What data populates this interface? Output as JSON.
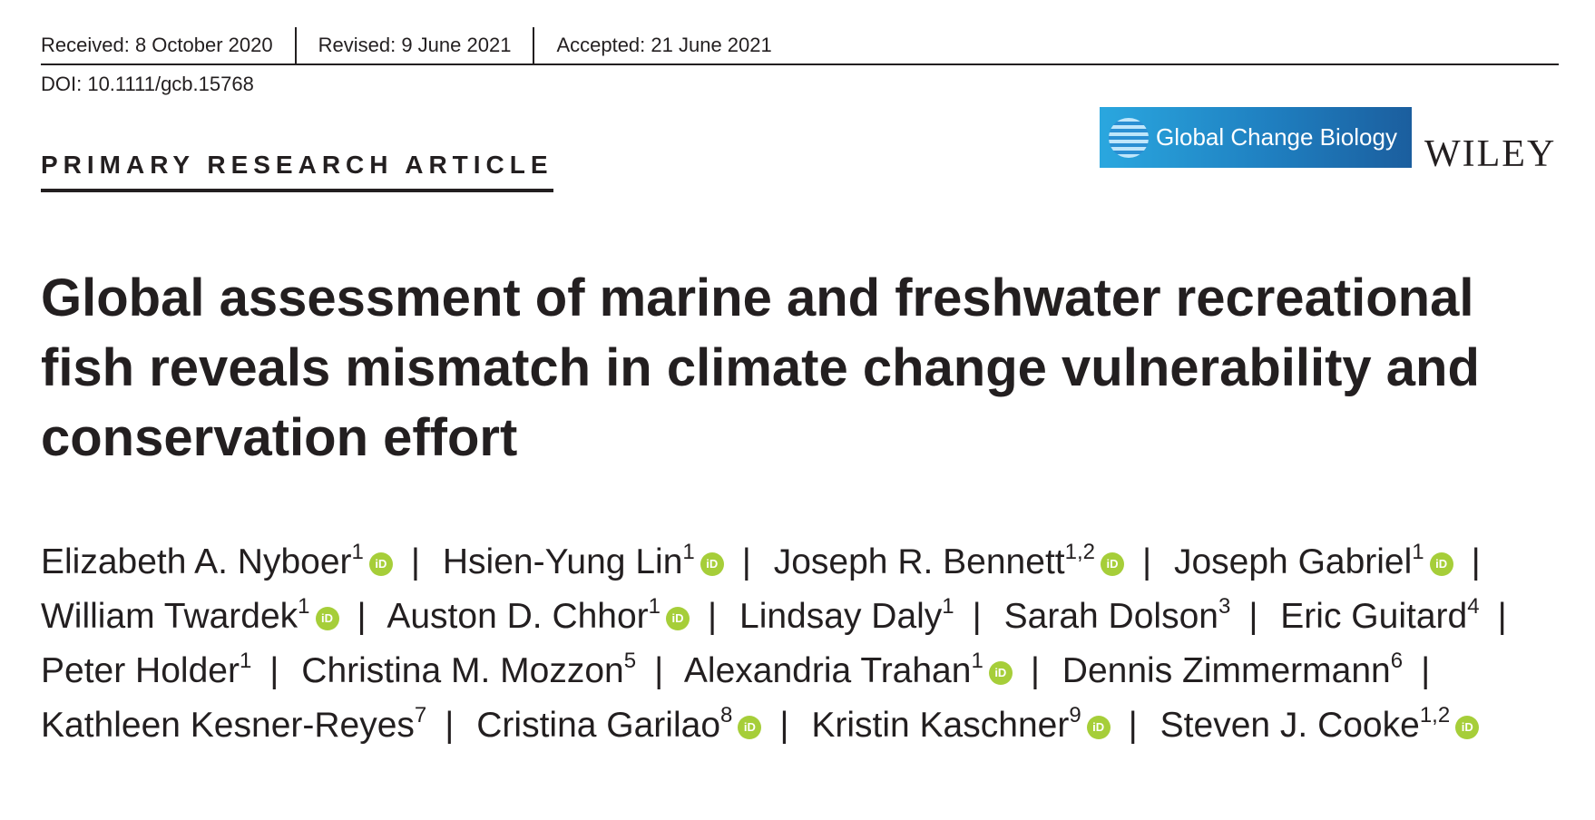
{
  "header": {
    "received": "Received: 8 October 2020",
    "revised": "Revised: 9 June 2021",
    "accepted": "Accepted: 21 June 2021",
    "doi": "DOI: 10.1111/gcb.15768",
    "article_type": "PRIMARY RESEARCH ARTICLE",
    "journal_logo_text": "Global Change Biology",
    "publisher_logo_text": "WILEY"
  },
  "title": "Global assessment of marine and freshwater recreational fish reveals mismatch in climate change vulnerability and conservation effort",
  "separator": "|",
  "orcid_glyph": "iD",
  "authors": [
    {
      "name": "Elizabeth A. Nyboer",
      "aff": "1",
      "orcid": true
    },
    {
      "name": "Hsien-Yung Lin",
      "aff": "1",
      "orcid": true
    },
    {
      "name": "Joseph R. Bennett",
      "aff": "1,2",
      "orcid": true
    },
    {
      "name": "Joseph Gabriel",
      "aff": "1",
      "orcid": true
    },
    {
      "name": "William Twardek",
      "aff": "1",
      "orcid": true
    },
    {
      "name": "Auston D. Chhor",
      "aff": "1",
      "orcid": true
    },
    {
      "name": "Lindsay Daly",
      "aff": "1",
      "orcid": false
    },
    {
      "name": "Sarah Dolson",
      "aff": "3",
      "orcid": false
    },
    {
      "name": "Eric Guitard",
      "aff": "4",
      "orcid": false
    },
    {
      "name": "Peter Holder",
      "aff": "1",
      "orcid": false
    },
    {
      "name": "Christina M. Mozzon",
      "aff": "5",
      "orcid": false
    },
    {
      "name": "Alexandria Trahan",
      "aff": "1",
      "orcid": true
    },
    {
      "name": "Dennis Zimmermann",
      "aff": "6",
      "orcid": false
    },
    {
      "name": "Kathleen Kesner-Reyes",
      "aff": "7",
      "orcid": false
    },
    {
      "name": "Cristina Garilao",
      "aff": "8",
      "orcid": true
    },
    {
      "name": "Kristin Kaschner",
      "aff": "9",
      "orcid": true
    },
    {
      "name": "Steven J. Cooke",
      "aff": "1,2",
      "orcid": true
    }
  ]
}
